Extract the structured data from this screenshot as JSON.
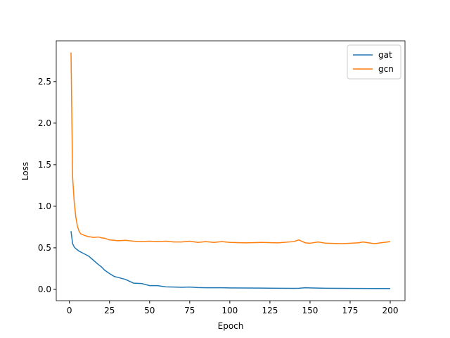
{
  "chart_data": {
    "type": "line",
    "xlabel": "Epoch",
    "ylabel": "Loss",
    "x": [
      1,
      2,
      3,
      4,
      5,
      6,
      7,
      8,
      10,
      12,
      15,
      18,
      20,
      22,
      25,
      28,
      30,
      35,
      40,
      45,
      50,
      55,
      60,
      65,
      70,
      75,
      80,
      85,
      90,
      95,
      100,
      110,
      120,
      130,
      140,
      143,
      147,
      150,
      155,
      160,
      170,
      180,
      183,
      190,
      200
    ],
    "series": [
      {
        "name": "gat",
        "color": "#1f77b4",
        "values": [
          0.7,
          0.55,
          0.51,
          0.49,
          0.475,
          0.46,
          0.45,
          0.44,
          0.42,
          0.4,
          0.35,
          0.3,
          0.27,
          0.23,
          0.19,
          0.155,
          0.145,
          0.12,
          0.075,
          0.07,
          0.045,
          0.045,
          0.03,
          0.028,
          0.025,
          0.028,
          0.022,
          0.02,
          0.02,
          0.02,
          0.018,
          0.016,
          0.015,
          0.013,
          0.012,
          0.013,
          0.02,
          0.018,
          0.015,
          0.013,
          0.012,
          0.011,
          0.011,
          0.01,
          0.01
        ]
      },
      {
        "name": "gcn",
        "color": "#ff7f0e",
        "values": [
          2.85,
          1.35,
          1.05,
          0.87,
          0.76,
          0.7,
          0.67,
          0.66,
          0.645,
          0.635,
          0.625,
          0.63,
          0.62,
          0.615,
          0.595,
          0.59,
          0.585,
          0.59,
          0.58,
          0.575,
          0.58,
          0.575,
          0.58,
          0.57,
          0.57,
          0.58,
          0.565,
          0.575,
          0.565,
          0.575,
          0.565,
          0.56,
          0.565,
          0.56,
          0.575,
          0.595,
          0.56,
          0.555,
          0.57,
          0.555,
          0.55,
          0.56,
          0.57,
          0.55,
          0.575
        ]
      }
    ],
    "xlim": [
      -8.2,
      209.2
    ],
    "xticks": [
      0,
      25,
      50,
      75,
      100,
      125,
      150,
      175,
      200
    ],
    "ylim": [
      -0.136,
      2.99
    ],
    "yticks": [
      {
        "value": 0,
        "label": "0.0"
      },
      0.5,
      {
        "value": 1,
        "label": "1.0"
      },
      1.5,
      {
        "value": 2,
        "label": "2.0"
      },
      2.5
    ],
    "legend": "upper right"
  }
}
